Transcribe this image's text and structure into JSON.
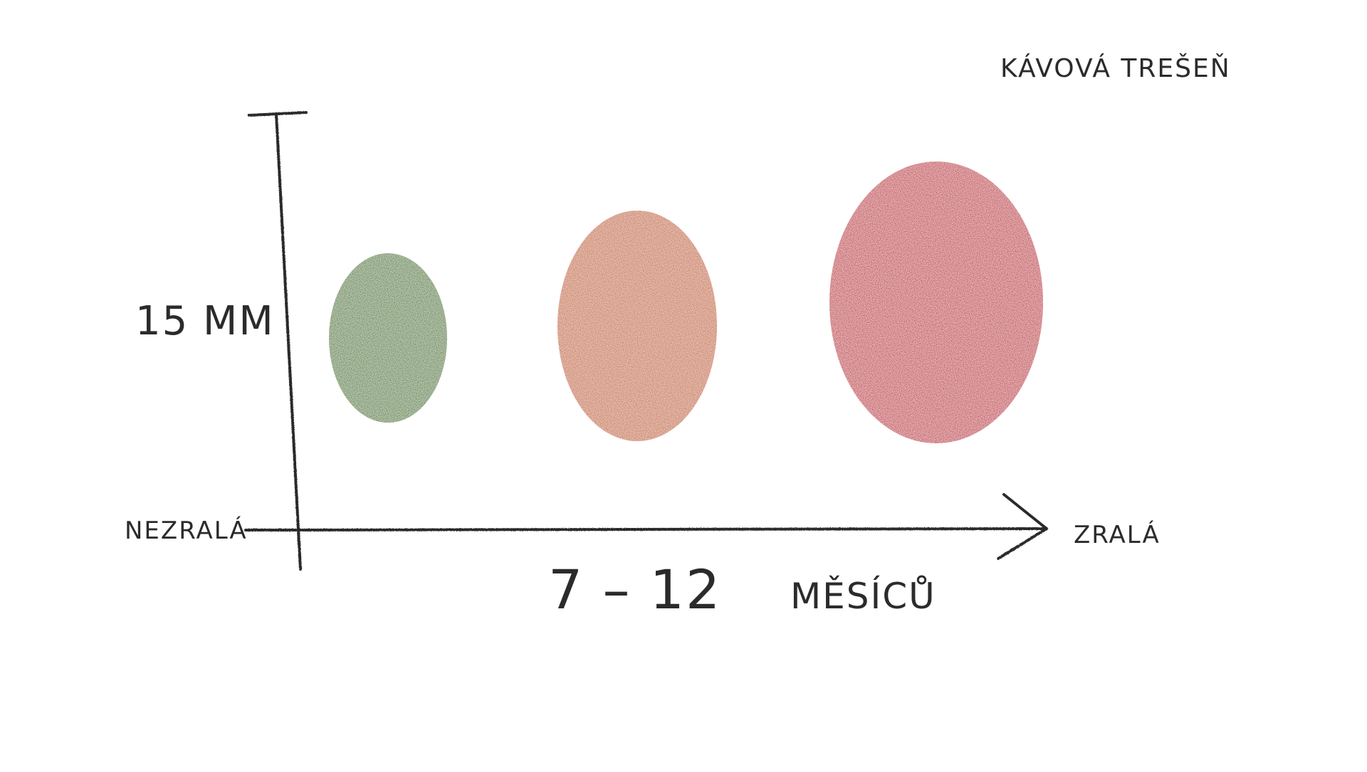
{
  "title": "KÁVOVÁ TREŠEŇ",
  "y_axis_label": "15 MM",
  "x_axis": {
    "start_label": "NEZRALÁ",
    "end_label": "ZRALÁ",
    "duration_number": "7 – 12",
    "duration_unit": "MĚSÍCŮ"
  },
  "stages": [
    {
      "stage": "unripe",
      "color": "#4f7f1f"
    },
    {
      "stage": "ripening",
      "color": "#c9692a"
    },
    {
      "stage": "ripe",
      "color": "#c41e34"
    }
  ],
  "colors": {
    "ink": "#2b2b2b",
    "green": "#4f7f1f",
    "orange": "#c9692a",
    "red": "#c41e34"
  }
}
